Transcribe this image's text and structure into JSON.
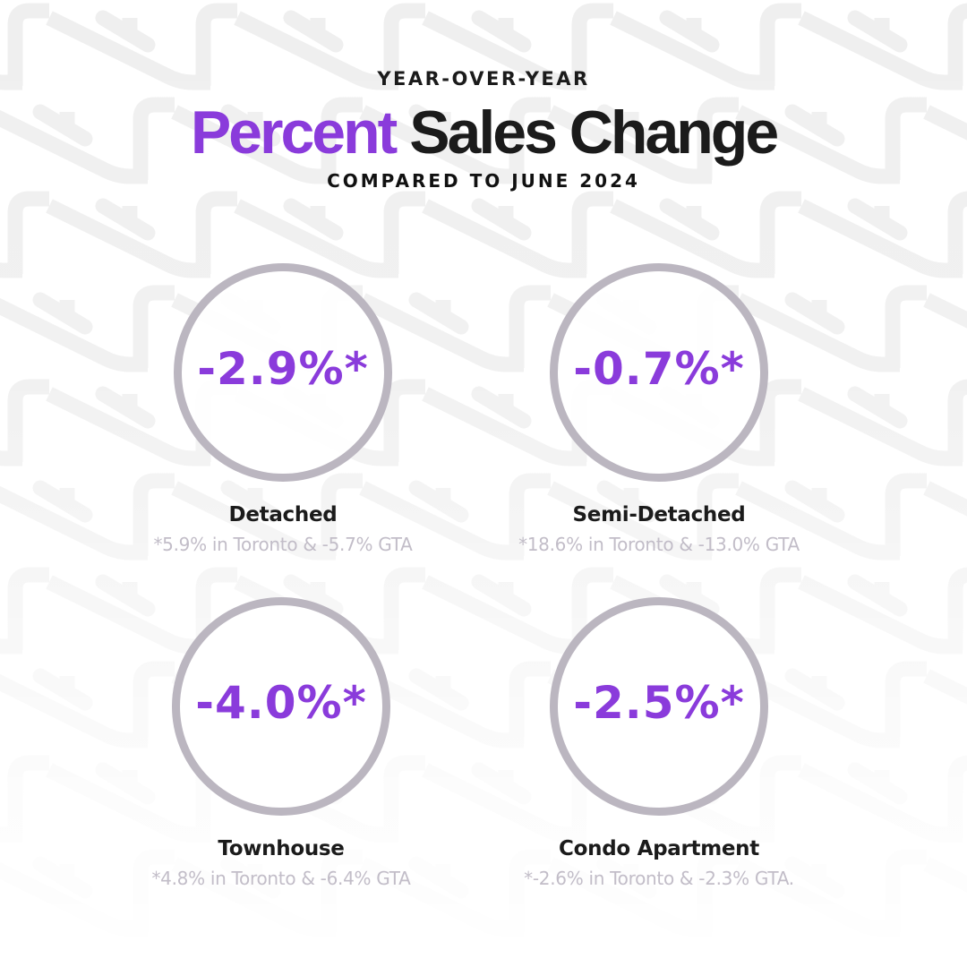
{
  "header": {
    "eyebrow": "YEAR-OVER-YEAR",
    "title_accent": "Percent",
    "title_rest": "Sales Change",
    "subtitle": "COMPARED TO JUNE 2024"
  },
  "colors": {
    "accent": "#8a3bdb",
    "ring": "#bbb6c0",
    "note": "#c2bdc8",
    "text": "#1b1b1b",
    "pattern": "#efefef"
  },
  "cards": [
    {
      "value": "-2.9%*",
      "label": "Detached",
      "note": "*5.9% in Toronto & -5.7% GTA"
    },
    {
      "value": "-0.7%*",
      "label": "Semi-Detached",
      "note": "*18.6% in Toronto & -13.0% GTA"
    },
    {
      "value": "-4.0%*",
      "label": "Townhouse",
      "note": "*4.8% in Toronto & -6.4% GTA"
    },
    {
      "value": "-2.5%*",
      "label": "Condo Apartment",
      "note": "*-2.6% in Toronto & -2.3% GTA."
    }
  ]
}
